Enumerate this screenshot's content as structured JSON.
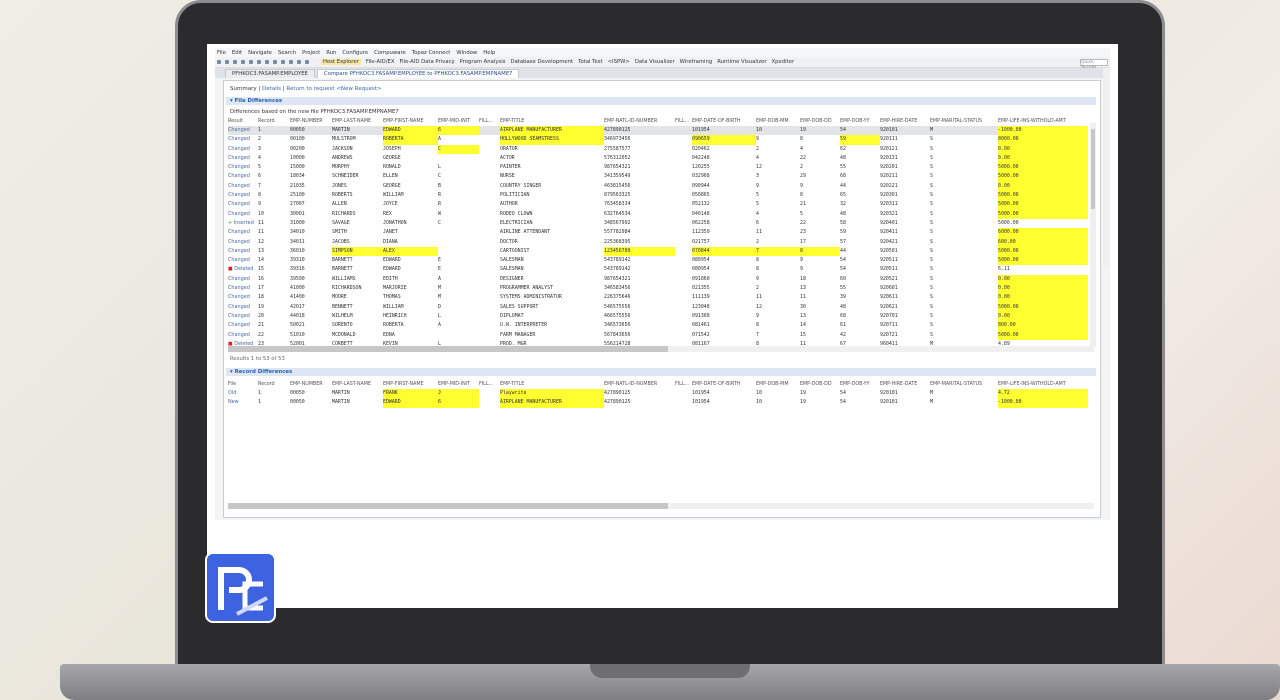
{
  "menu": [
    "File",
    "Edit",
    "Navigate",
    "Search",
    "Project",
    "Run",
    "Configure",
    "Compuware",
    "Topaz Connect",
    "Window",
    "Help"
  ],
  "perspectives": [
    {
      "label": "Host Explorer",
      "active": true
    },
    {
      "label": "File-AID/EX"
    },
    {
      "label": "File-AID Data Privacy"
    },
    {
      "label": "Program Analysis"
    },
    {
      "label": "Database Development"
    },
    {
      "label": "Total Test"
    },
    {
      "label": "<ISPW>"
    },
    {
      "label": "Data Visualizer"
    },
    {
      "label": "Wireframing"
    },
    {
      "label": "Runtime Visualizer"
    },
    {
      "label": "Xpediter"
    }
  ],
  "quick_access": "Quick Access",
  "tabs": [
    "PFHKOC3.FASAMP.EMPLOYEE",
    "Compare PFHKOC3.FASAMP.EMPLOYEE to PFHKOC3.FASAMP.EMPNAME7"
  ],
  "nav": {
    "summary": "Summary",
    "details": "Details",
    "return": "Return to request",
    "new": "<New Request>"
  },
  "file_diff": {
    "title": "File Differences",
    "description": "Differences based on the new file PFHKOC3.FASAMP.EMPNAME7"
  },
  "columns": [
    "Result",
    "Record",
    "EMP-NUMBER",
    "EMP-LAST-NAME",
    "EMP-FIRST-NAME",
    "EMP-MID-INIT",
    "FILL...",
    "EMP-TITLE",
    "EMP-NATL-ID-NUMBER",
    "FILL...",
    "EMP-DATE-OF-BIRTH",
    "EMP-DOB-MM",
    "EMP-DOB-DD",
    "EMP-DOB-YY",
    "EMP-HIRE-DATE",
    "EMP-MARITAL-STATUS",
    "EMP-LIFE-INS-WITHOLD-AMT"
  ],
  "rows": [
    {
      "c": [
        "Changed",
        "1",
        "00050",
        "MARTIN",
        "EDWARD",
        "6",
        "",
        "AIRPLANE MANUFACTURER",
        "427890125",
        "",
        "101954",
        "10",
        "19",
        "54",
        "920101",
        "M",
        "-1000.00"
      ],
      "hl": [
        4,
        5,
        7,
        16
      ],
      "selected": true
    },
    {
      "c": [
        "Changed",
        "2",
        "00100",
        "MULSTROM",
        "ROBERTA",
        "A",
        "",
        "HOLLYWOOD SEAMSTRESS",
        "346973456",
        "",
        "090659",
        "9",
        "8",
        "59",
        "920111",
        "S",
        "8000.00"
      ],
      "hl": [
        4,
        7,
        10,
        13,
        16
      ]
    },
    {
      "c": [
        "Changed",
        "3",
        "00200",
        "JACKSON",
        "JOSEPH",
        "C",
        "",
        "ORATOR",
        "275587577",
        "",
        "020462",
        "2",
        "4",
        "62",
        "920121",
        "S",
        "0.00"
      ],
      "hl": [
        5,
        16
      ]
    },
    {
      "c": [
        "Changed",
        "4",
        "10000",
        "ANDREWS",
        "GEORGE",
        "",
        "",
        "ACTOR",
        "576312052",
        "",
        "042248",
        "4",
        "22",
        "48",
        "920131",
        "S",
        "0.00"
      ],
      "hl": [
        16
      ]
    },
    {
      "c": [
        "Changed",
        "5",
        "15000",
        "MURPHY",
        "RONALD",
        "L",
        "",
        "PAINTER",
        "987654321",
        "",
        "120255",
        "12",
        "2",
        "55",
        "920201",
        "S",
        "5000.00"
      ],
      "hl": [
        16
      ]
    },
    {
      "c": [
        "Changed",
        "6",
        "18034",
        "SCHNEIDER",
        "ELLEN",
        "C",
        "",
        "NURSE",
        "341359549",
        "",
        "032968",
        "3",
        "29",
        "68",
        "920211",
        "S",
        "5000.00"
      ],
      "hl": [
        16
      ]
    },
    {
      "c": [
        "Changed",
        "7",
        "21035",
        "JONES",
        "GEORGE",
        "B",
        "",
        "COUNTRY SINGER",
        "463815456",
        "",
        "090944",
        "9",
        "9",
        "44",
        "920221",
        "S",
        "0.00"
      ],
      "hl": [
        16
      ]
    },
    {
      "c": [
        "Changed",
        "8",
        "25100",
        "ROBERTS",
        "WILLIAM",
        "R",
        "",
        "POLITICIAN",
        "879563325",
        "",
        "050865",
        "5",
        "8",
        "65",
        "920301",
        "S",
        "5000.00"
      ],
      "hl": [
        16
      ]
    },
    {
      "c": [
        "Changed",
        "9",
        "27007",
        "ALLEN",
        "JOYCE",
        "R",
        "",
        "AUTHOR",
        "763458334",
        "",
        "052132",
        "5",
        "21",
        "32",
        "920311",
        "S",
        "5000.00"
      ],
      "hl": [
        16
      ]
    },
    {
      "c": [
        "Changed",
        "10",
        "30001",
        "RICHARDS",
        "REX",
        "W",
        "",
        "RODEO CLOWN",
        "632764534",
        "",
        "040148",
        "4",
        "5",
        "48",
        "920321",
        "S",
        "5000.00"
      ],
      "hl": [
        16
      ]
    },
    {
      "c": [
        "Inserted",
        "11",
        "31000",
        "SAVAGE",
        "JONATHON",
        "C",
        "",
        "ELECTRICIAN",
        "348567992",
        "",
        "062258",
        "6",
        "22",
        "58",
        "920401",
        "S",
        "5000.00"
      ],
      "hl": []
    },
    {
      "c": [
        "Changed",
        "11",
        "34010",
        "SMITH",
        "JANET",
        "",
        "",
        "AIRLINE ATTENDANT",
        "557782984",
        "",
        "112359",
        "11",
        "23",
        "59",
        "920411",
        "S",
        "6000.00"
      ],
      "hl": [
        16
      ]
    },
    {
      "c": [
        "Changed",
        "12",
        "34011",
        "JACOBS",
        "DIANA",
        "",
        "",
        "DOCTOR",
        "225368395",
        "",
        "021757",
        "2",
        "17",
        "57",
        "920421",
        "S",
        "600.00"
      ],
      "hl": [
        16
      ]
    },
    {
      "c": [
        "Changed",
        "13",
        "36010",
        "SIMPSON",
        "ALEX",
        "",
        "",
        "CARTOONIST",
        "123456789",
        "",
        "070844",
        "7",
        "8",
        "44",
        "920501",
        "S",
        "5000.00"
      ],
      "hl": [
        3,
        4,
        8,
        10,
        11,
        12,
        16
      ]
    },
    {
      "c": [
        "Changed",
        "14",
        "39310",
        "BARNETT",
        "EDWARD",
        "E",
        "",
        "SALESMAN",
        "543789142",
        "",
        "080954",
        "8",
        "9",
        "54",
        "920511",
        "S",
        "5000.00"
      ],
      "hl": [
        16
      ]
    },
    {
      "c": [
        "Deleted",
        "15",
        "39316",
        "BARNETT",
        "EDWARD",
        "E",
        "",
        "SALESMAN",
        "543789142",
        "",
        "080954",
        "8",
        "9",
        "54",
        "920511",
        "S",
        "6.11"
      ],
      "hl": []
    },
    {
      "c": [
        "Changed",
        "16",
        "39500",
        "WILLIAMS",
        "EDITH",
        "A",
        "",
        "DESIGNER",
        "987654321",
        "",
        "091860",
        "9",
        "18",
        "60",
        "920521",
        "S",
        "0.00"
      ],
      "hl": [
        16
      ]
    },
    {
      "c": [
        "Changed",
        "17",
        "41000",
        "RICHARDSON",
        "MARJORIE",
        "M",
        "",
        "PROGRAMMER ANALYST",
        "346583456",
        "",
        "021355",
        "2",
        "13",
        "55",
        "920601",
        "S",
        "0.00"
      ],
      "hl": [
        16
      ]
    },
    {
      "c": [
        "Changed",
        "18",
        "41400",
        "MOORE",
        "THOMAS",
        "M",
        "",
        "SYSTEMS ADMINISTRATOR",
        "226375646",
        "",
        "111139",
        "11",
        "11",
        "39",
        "920611",
        "S",
        "0.00"
      ],
      "hl": [
        16
      ]
    },
    {
      "c": [
        "Changed",
        "19",
        "42017",
        "BENNETT",
        "WILLIAM",
        "D",
        "",
        "SALES SUPPORT",
        "546575556",
        "",
        "123048",
        "12",
        "30",
        "48",
        "920621",
        "S",
        "5000.00"
      ],
      "hl": [
        16
      ]
    },
    {
      "c": [
        "Changed",
        "20",
        "44018",
        "WILHELM",
        "HEINRICH",
        "L",
        "",
        "DIPLOMAT",
        "466575556",
        "",
        "091368",
        "9",
        "13",
        "68",
        "920701",
        "S",
        "0.00"
      ],
      "hl": [
        16
      ]
    },
    {
      "c": [
        "Changed",
        "21",
        "50021",
        "SORENTO",
        "ROBERTA",
        "A",
        "",
        "U.N. INTERPRETER",
        "346573656",
        "",
        "081461",
        "8",
        "14",
        "61",
        "920711",
        "S",
        "800.00"
      ],
      "hl": [
        16
      ]
    },
    {
      "c": [
        "Changed",
        "22",
        "51010",
        "MCDONALD",
        "EDNA",
        "",
        "",
        "FARM MANAGER",
        "567843656",
        "",
        "071542",
        "7",
        "15",
        "42",
        "920721",
        "S",
        "5000.00"
      ],
      "hl": [
        16
      ]
    },
    {
      "c": [
        "Deleted",
        "23",
        "52001",
        "CORBETT",
        "KEVIN",
        "L",
        "",
        "PROD. MGR",
        "556214728",
        "",
        "081167",
        "8",
        "11",
        "67",
        "960411",
        "M",
        "4.89"
      ],
      "hl": []
    }
  ],
  "results_text": "Results 1 to 53 of 53",
  "record_diff": {
    "title": "Record Differences",
    "columns": [
      "File",
      "Record",
      "EMP-NUMBER",
      "EMP-LAST-NAME",
      "EMP-FIRST-NAME",
      "EMP-MID-INIT",
      "FILL...",
      "EMP-TITLE",
      "EMP-NATL-ID-NUMBER",
      "FILL...",
      "EMP-DATE-OF-BIRTH",
      "EMP-DOB-MM",
      "EMP-DOB-DD",
      "EMP-DOB-YY",
      "EMP-HIRE-DATE",
      "EMP-MARITAL-STATUS",
      "EMP-LIFE-INS-WITHOLD-AMT"
    ],
    "rows": [
      {
        "c": [
          "Old",
          "1",
          "00050",
          "MARTIN",
          "FRANK",
          "J",
          "",
          "Playwrite",
          "427890125",
          "",
          "101954",
          "10",
          "19",
          "54",
          "920101",
          "M",
          "4.72"
        ],
        "hl": [
          4,
          5,
          7,
          16
        ]
      },
      {
        "c": [
          "New",
          "1",
          "00050",
          "MARTIN",
          "EDWARD",
          "6",
          "",
          "AIRPLANE MANUFACTURER",
          "427890125",
          "",
          "101954",
          "10",
          "19",
          "54",
          "920101",
          "M",
          "-1000.00"
        ],
        "hl": [
          4,
          5,
          7,
          16
        ]
      }
    ]
  },
  "colors": {
    "highlight": "#ffff30",
    "link": "#3a66b0",
    "logo": "#3e63e0"
  }
}
